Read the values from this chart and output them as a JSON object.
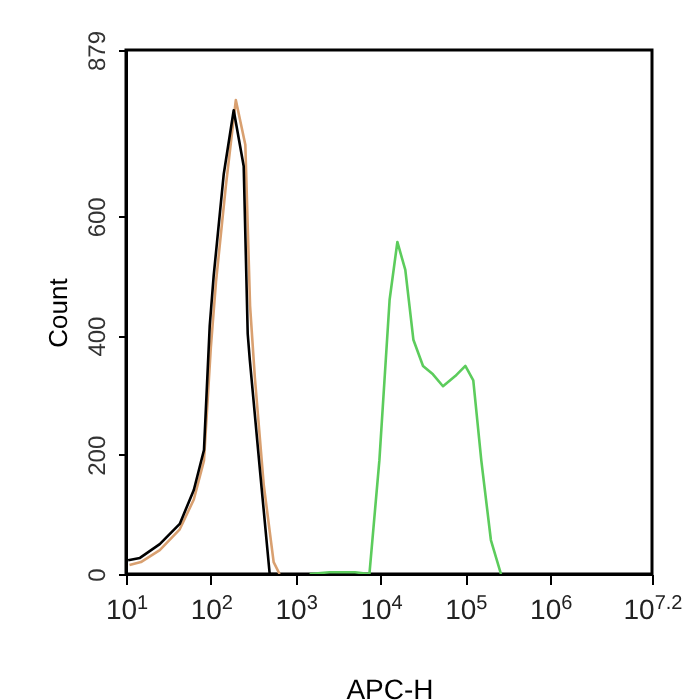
{
  "chart_data": {
    "type": "line",
    "xlabel": "APC-H",
    "ylabel": "Count",
    "log": "x",
    "grid": false,
    "marker": "none",
    "line_style": "solid",
    "xlim": [
      10,
      15848932
    ],
    "ylim": [
      0,
      879
    ],
    "xticks": [
      {
        "value": 10,
        "label": "10$^{1}$"
      },
      {
        "value": 100,
        "label": "10$^{2}$"
      },
      {
        "value": 1000,
        "label": "10$^{3}$"
      },
      {
        "value": 10000,
        "label": "10$^{4}$"
      },
      {
        "value": 100000,
        "label": "10$^{5}$"
      },
      {
        "value": 1000000,
        "label": "10$^{6}$"
      },
      {
        "value": 15848932,
        "label": "10$^{7.2}$"
      }
    ],
    "yticks": [
      0,
      200,
      400,
      600,
      879
    ],
    "series": [
      {
        "color": "#d9a070",
        "x": [
          11,
          15,
          25,
          43,
          63,
          83,
          100,
          115,
          150,
          197,
          255,
          290,
          330,
          420,
          550,
          646
        ],
        "values": [
          15,
          20,
          40,
          75,
          125,
          190,
          380,
          490,
          650,
          795,
          720,
          450,
          330,
          150,
          20,
          0
        ]
      },
      {
        "color": "#000000",
        "x": [
          10.6,
          14.6,
          25,
          43,
          63,
          83,
          97,
          108,
          142,
          186,
          244,
          272,
          288,
          377,
          494,
          600
        ],
        "values": [
          23,
          27,
          50,
          84,
          141,
          208,
          416,
          500,
          671,
          778,
          684,
          403,
          359,
          178,
          0,
          0
        ]
      },
      {
        "color": "#5ccc5c",
        "x": [
          1460,
          2500,
          5000,
          7400,
          9700,
          12800,
          15800,
          19600,
          24400,
          31700,
          41500,
          54500,
          76000,
          100000,
          124000,
          154000,
          200000,
          263000
        ],
        "values": [
          0,
          3,
          3,
          0,
          191,
          460,
          557,
          510,
          393,
          349,
          335,
          315,
          332,
          349,
          325,
          191,
          57,
          0
        ]
      }
    ]
  }
}
